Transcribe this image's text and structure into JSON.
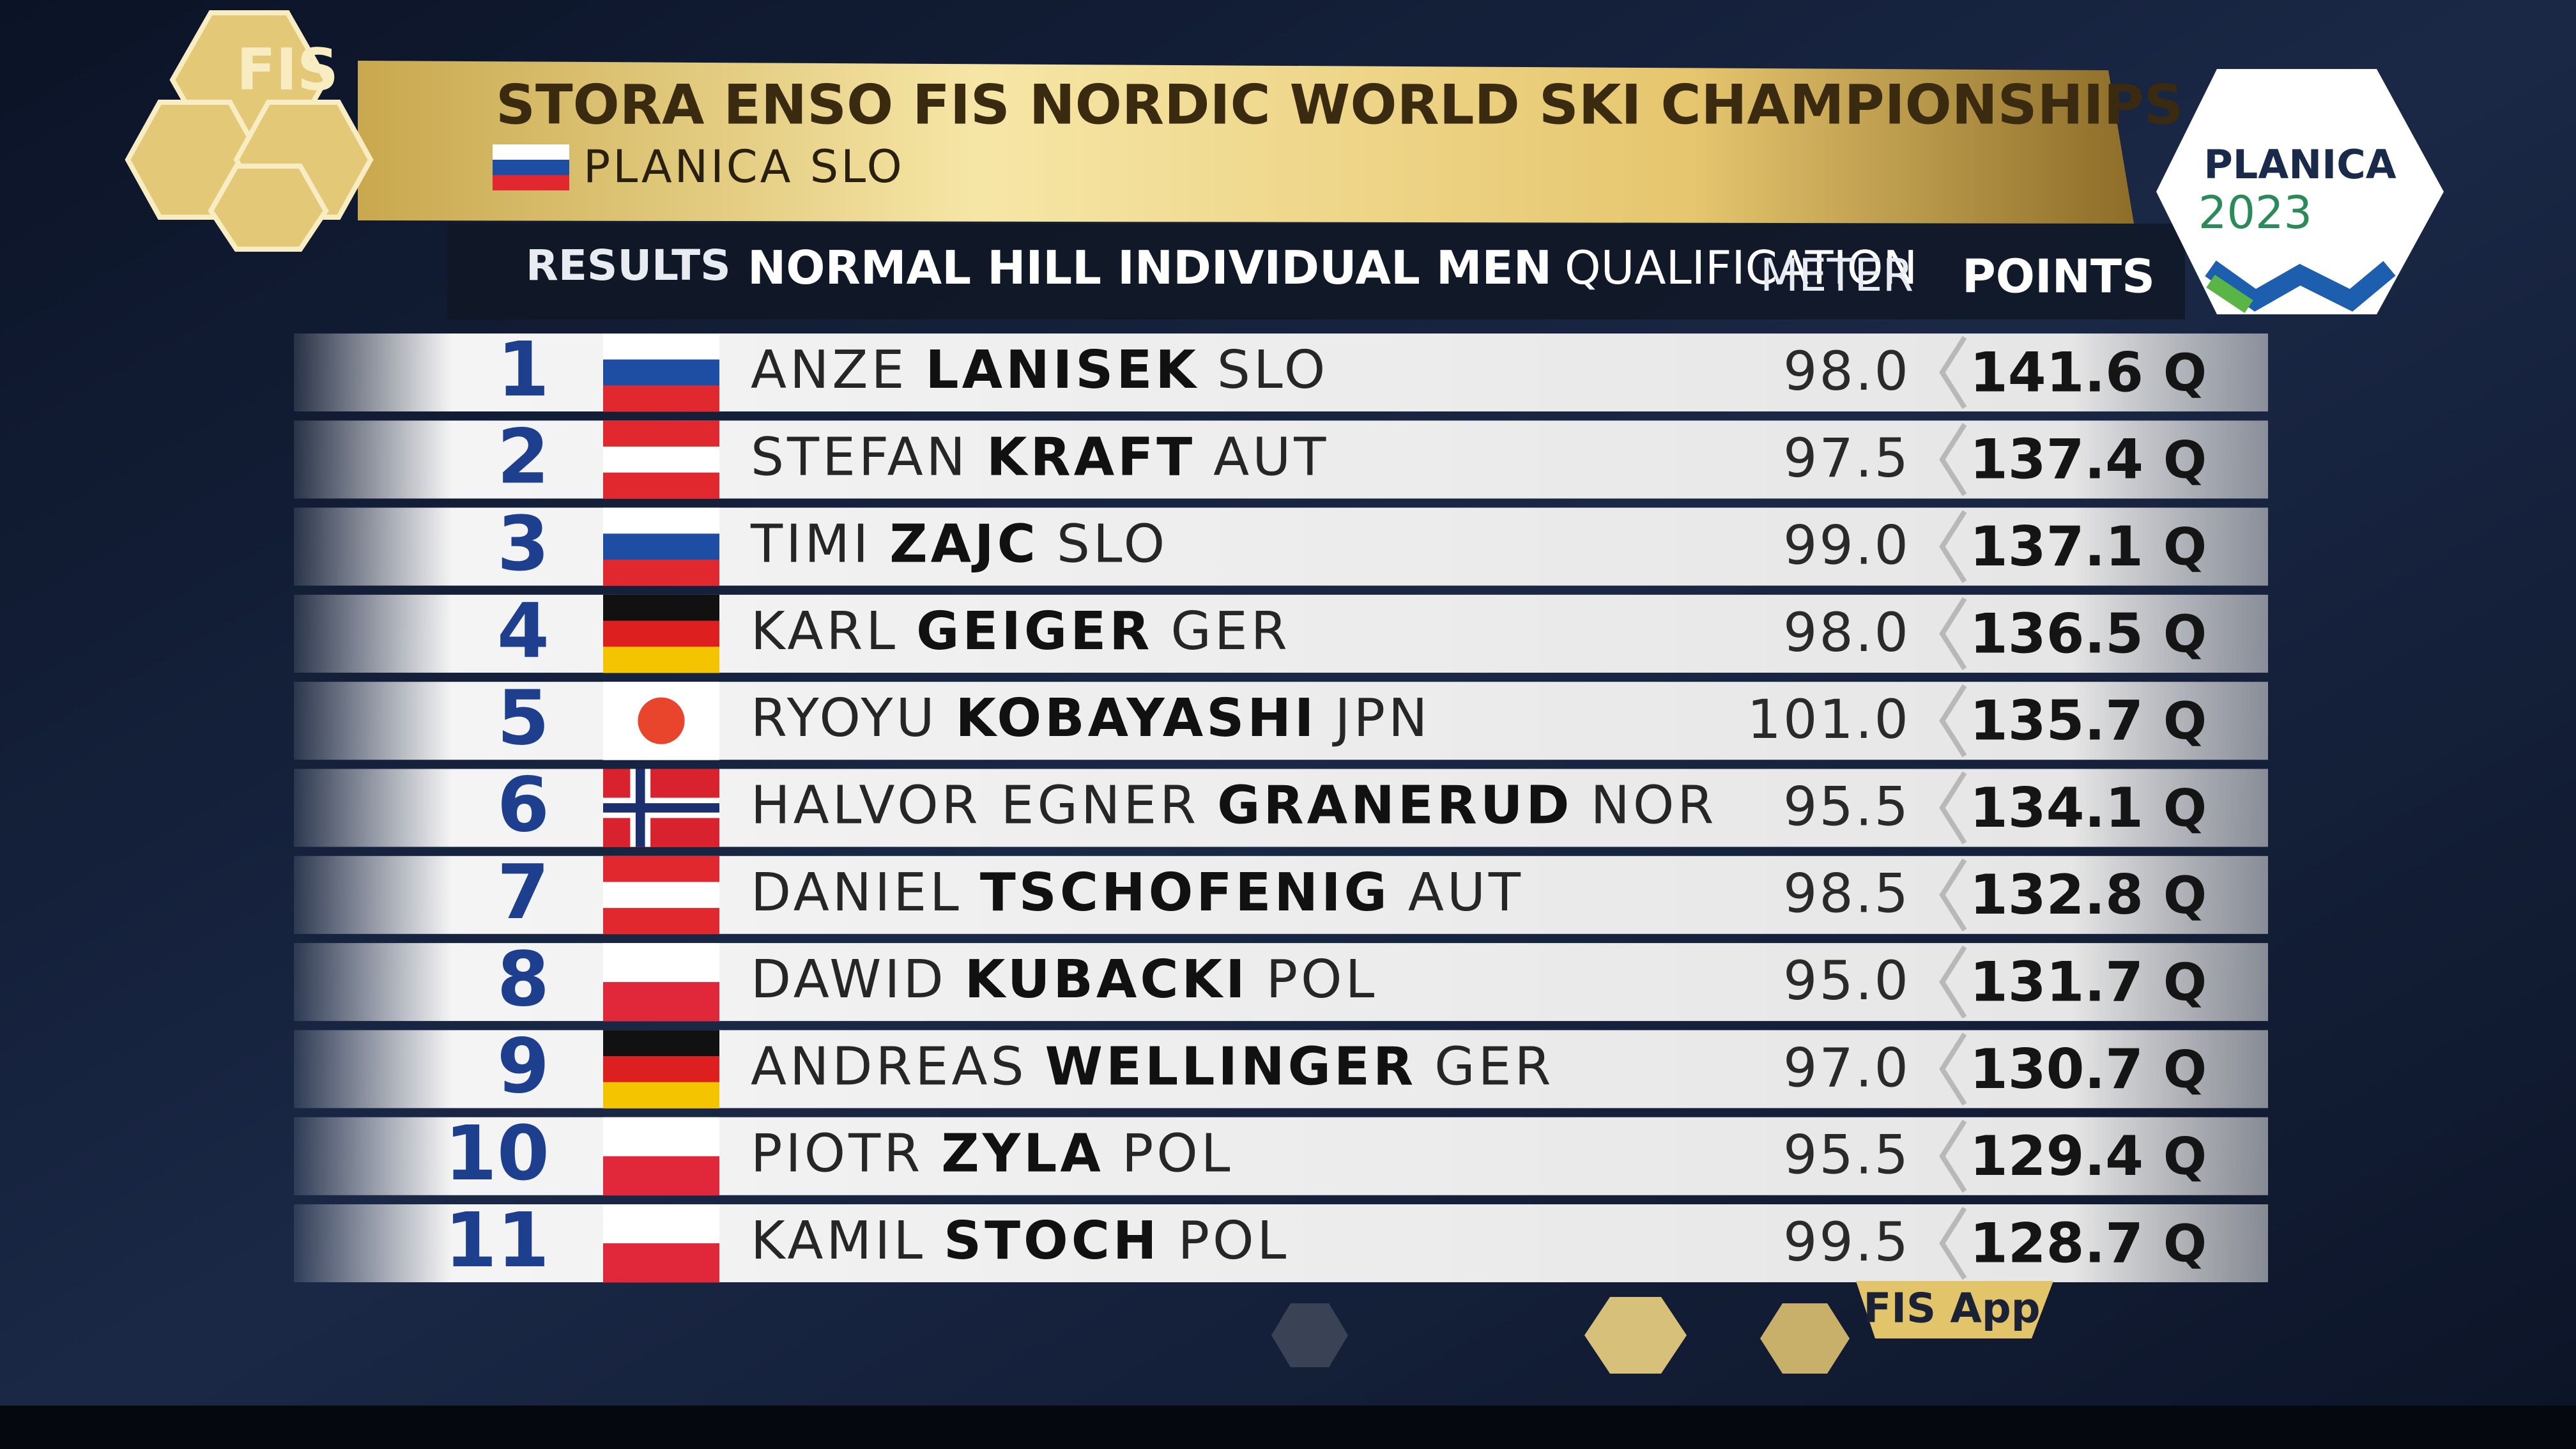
{
  "header": {
    "logo": "FIS",
    "title": "STORA ENSO FIS NORDIC WORLD SKI CHAMPIONSHIPS",
    "location": "PLANICA SLO"
  },
  "event": {
    "label": "RESULTS",
    "name": "NORMAL HILL INDIVIDUAL MEN",
    "phase": "QUALIFICATION",
    "meter_header": "METER",
    "points_header": "POINTS"
  },
  "rows": [
    {
      "rank": 1,
      "first": "ANZE",
      "last": "LANISEK",
      "nation": "SLO",
      "meter": "98.0",
      "points": "141.6",
      "status": "Q",
      "flag": {
        "stripes": [
          "#ffffff",
          "#1d4ea3",
          "#e0282e"
        ]
      }
    },
    {
      "rank": 2,
      "first": "STEFAN",
      "last": "KRAFT",
      "nation": "AUT",
      "meter": "97.5",
      "points": "137.4",
      "status": "Q",
      "flag": {
        "stripes": [
          "#e0282e",
          "#ffffff",
          "#e0282e"
        ]
      }
    },
    {
      "rank": 3,
      "first": "TIMI",
      "last": "ZAJC",
      "nation": "SLO",
      "meter": "99.0",
      "points": "137.1",
      "status": "Q",
      "flag": {
        "stripes": [
          "#ffffff",
          "#1d4ea3",
          "#e0282e"
        ]
      }
    },
    {
      "rank": 4,
      "first": "KARL",
      "last": "GEIGER",
      "nation": "GER",
      "meter": "98.0",
      "points": "136.5",
      "status": "Q",
      "flag": {
        "stripes": [
          "#111111",
          "#dd1f1f",
          "#f5c400"
        ]
      }
    },
    {
      "rank": 5,
      "first": "RYOYU",
      "last": "KOBAYASHI",
      "nation": "JPN",
      "meter": "101.0",
      "points": "135.7",
      "status": "Q",
      "flag": {
        "stripes": [
          "#ffffff"
        ],
        "disc": "#e8452c"
      }
    },
    {
      "rank": 6,
      "first": "HALVOR EGNER",
      "last": "GRANERUD",
      "nation": "NOR",
      "meter": "95.5",
      "points": "134.1",
      "status": "Q",
      "flag": {
        "stripes": [
          "#d8232e"
        ],
        "cross": [
          "#ffffff",
          "#1c2f6e"
        ]
      }
    },
    {
      "rank": 7,
      "first": "DANIEL",
      "last": "TSCHOFENIG",
      "nation": "AUT",
      "meter": "98.5",
      "points": "132.8",
      "status": "Q",
      "flag": {
        "stripes": [
          "#e0282e",
          "#ffffff",
          "#e0282e"
        ]
      }
    },
    {
      "rank": 8,
      "first": "DAWID",
      "last": "KUBACKI",
      "nation": "POL",
      "meter": "95.0",
      "points": "131.7",
      "status": "Q",
      "flag": {
        "stripes": [
          "#ffffff",
          "#e0283a"
        ]
      }
    },
    {
      "rank": 9,
      "first": "ANDREAS",
      "last": "WELLINGER",
      "nation": "GER",
      "meter": "97.0",
      "points": "130.7",
      "status": "Q",
      "flag": {
        "stripes": [
          "#111111",
          "#dd1f1f",
          "#f5c400"
        ]
      }
    },
    {
      "rank": 10,
      "first": "PIOTR",
      "last": "ZYLA",
      "nation": "POL",
      "meter": "95.5",
      "points": "129.4",
      "status": "Q",
      "flag": {
        "stripes": [
          "#ffffff",
          "#e0283a"
        ]
      }
    },
    {
      "rank": 11,
      "first": "KAMIL",
      "last": "STOCH",
      "nation": "POL",
      "meter": "99.5",
      "points": "128.7",
      "status": "Q",
      "flag": {
        "stripes": [
          "#ffffff",
          "#e0283a"
        ]
      }
    }
  ],
  "badge": {
    "name": "PLANICA",
    "year": "2023"
  },
  "footer": {
    "app": "FIS App"
  }
}
